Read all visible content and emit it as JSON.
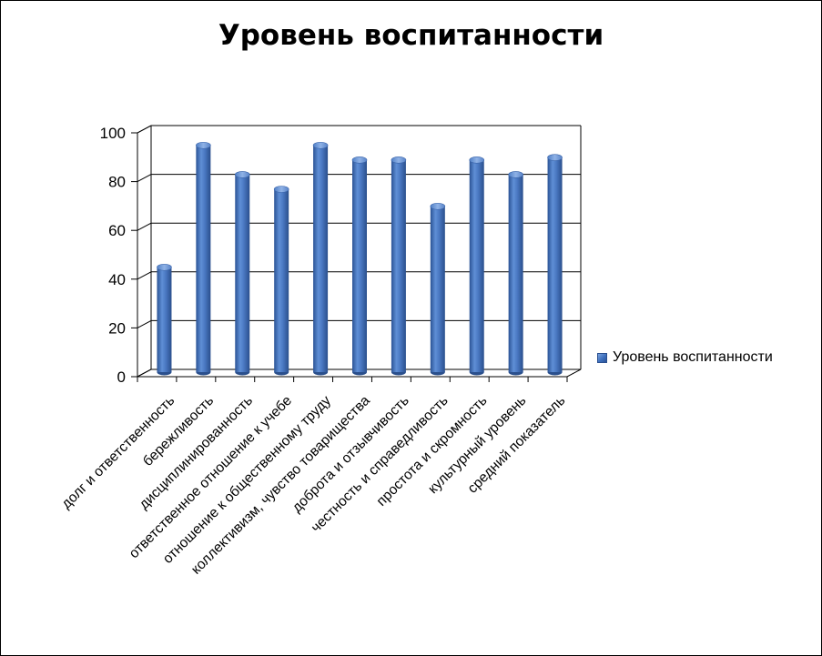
{
  "chart_data": {
    "type": "bar",
    "title": "Уровень воспитанности",
    "categories": [
      "долг и ответственность",
      "бережливость",
      "дисциплинированность",
      "ответственное отношение к учебе",
      "отношение к общественному труду",
      "коллективизм, чувство товарищества",
      "доброта и отзывчивость",
      "честность и справедливость",
      "простота и скромность",
      "культурный уровень",
      "средний показатель"
    ],
    "series": [
      {
        "name": "Уровень воспитанности",
        "values": [
          43,
          93,
          81,
          75,
          93,
          87,
          87,
          68,
          87,
          81,
          88
        ]
      }
    ],
    "ylim": [
      0,
      100
    ],
    "yticks": [
      0,
      20,
      40,
      60,
      80,
      100
    ],
    "grid": true,
    "legend_position": "right",
    "bar_color": "#4472C4"
  }
}
